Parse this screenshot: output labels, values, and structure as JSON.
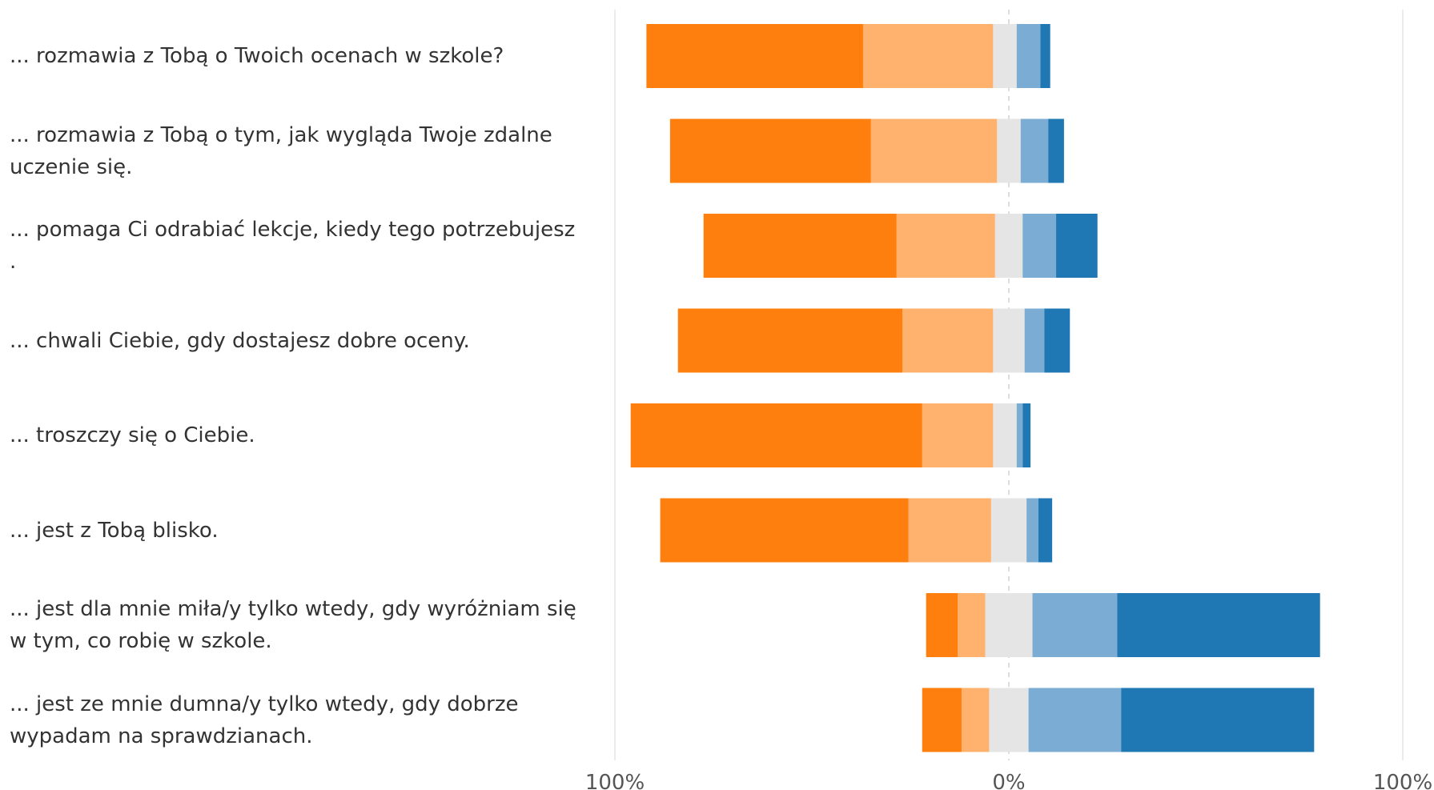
{
  "chart_data": {
    "type": "bar",
    "orientation": "horizontal",
    "stacked": "diverging",
    "title": "",
    "xlabel": "",
    "ylabel": "",
    "xlim": [
      -100,
      100
    ],
    "x_ticks": [
      "100%",
      "0%",
      "100%"
    ],
    "grid": true,
    "legend": "none",
    "categories": [
      "... rozmawia z Tobą o Twoich ocenach w szkole?",
      "... rozmawia z Tobą o tym, jak wygląda Twoje zdalne\nuczenie się.",
      "... pomaga Ci odrabiać lekcje, kiedy tego potrzebujesz\n.",
      "... chwali Ciebie, gdy dostajesz dobre oceny.",
      "... troszczy się o Ciebie.",
      "... jest z Tobą blisko.",
      "... jest dla mnie miła/y tylko wtedy, gdy wyróżniam się\nw tym, co robię w szkole.",
      "... jest ze mnie dumna/y tylko wtedy, gdy dobrze\nwypadam na sprawdzianach."
    ],
    "series": [
      {
        "color": "#ff7f0e",
        "values": [
          -55,
          -51,
          -49,
          -57,
          -74,
          -63,
          -8,
          -10
        ]
      },
      {
        "color": "#ffb26e",
        "values": [
          -33,
          -32,
          -25,
          -23,
          -18,
          -21,
          -7,
          -7
        ]
      },
      {
        "color": "#e5e5e5",
        "values": [
          -4,
          -3,
          -3.5,
          -4,
          -4,
          -4.5,
          -6,
          -5
        ]
      },
      {
        "color": "#e5e5e5",
        "values": [
          2,
          3,
          3.5,
          4,
          2,
          4.5,
          6,
          5
        ]
      },
      {
        "color": "#7bacd3",
        "values": [
          6,
          7,
          8.5,
          5,
          1.5,
          3,
          21.5,
          23.5
        ]
      },
      {
        "color": "#1f77b4",
        "values": [
          2.5,
          4,
          10.5,
          6.5,
          2,
          3.5,
          51.5,
          49
        ]
      }
    ]
  }
}
